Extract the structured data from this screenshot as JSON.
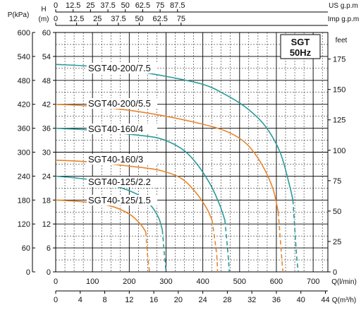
{
  "chart_data": {
    "type": "line",
    "title": "SGT",
    "subtitle": "50Hz",
    "axes": {
      "x_main": {
        "label": "Q(l/min)",
        "ticks": [
          "0",
          "100",
          "200",
          "300",
          "400",
          "500",
          "600",
          "700"
        ],
        "range": [
          0,
          740
        ]
      },
      "x_m3h": {
        "label": "Q(m³/h)",
        "ticks": [
          "0",
          "4",
          "8",
          "12",
          "16",
          "20",
          "24",
          "28",
          "32",
          "36",
          "40",
          "44"
        ],
        "range": [
          0,
          44.4
        ]
      },
      "x_us": {
        "label": "US g.p.m",
        "ticks": [
          "0",
          "12.5",
          "25",
          "37.5",
          "50",
          "62.5",
          "75",
          "87.5"
        ]
      },
      "x_imp": {
        "label": "Imp g.p.m",
        "ticks": [
          "0",
          "12.5",
          "25",
          "37.5",
          "50",
          "62.5",
          "75"
        ]
      },
      "y_head_m": {
        "label": "H",
        "unit": "(m)",
        "ticks": [
          "0",
          "6",
          "12",
          "18",
          "24",
          "30",
          "36",
          "42",
          "48",
          "54",
          "60"
        ],
        "range": [
          0,
          60
        ]
      },
      "y_kpa": {
        "label": "P(kPa)",
        "ticks": [
          "0",
          "60",
          "120",
          "180",
          "240",
          "300",
          "360",
          "420",
          "480",
          "540",
          "600"
        ]
      },
      "y_feet": {
        "label": "feet",
        "ticks": [
          "0",
          "25",
          "50",
          "75",
          "100",
          "125",
          "150",
          "175"
        ]
      }
    },
    "grid": true,
    "colors": {
      "teal": "#2b9a9a",
      "orange": "#e6862c",
      "grid": "#000000"
    },
    "series": [
      {
        "name": "SGT40-200/7.5",
        "color": "#2b9a9a",
        "points": [
          [
            0,
            52
          ],
          [
            100,
            51.5
          ],
          [
            200,
            50.5
          ],
          [
            300,
            49
          ],
          [
            400,
            47
          ],
          [
            460,
            44.5
          ],
          [
            520,
            41
          ],
          [
            570,
            36.5
          ],
          [
            610,
            30
          ],
          [
            635,
            22
          ],
          [
            645,
            18
          ]
        ],
        "tail": [
          [
            645,
            18
          ],
          [
            655,
            4
          ],
          [
            660,
            0
          ]
        ]
      },
      {
        "name": "SGT40-200/5.5",
        "color": "#e6862c",
        "points": [
          [
            0,
            42
          ],
          [
            100,
            41.5
          ],
          [
            200,
            40.5
          ],
          [
            300,
            39
          ],
          [
            400,
            37
          ],
          [
            470,
            35
          ],
          [
            520,
            32
          ],
          [
            560,
            27
          ],
          [
            590,
            21
          ],
          [
            605,
            15
          ]
        ],
        "tail": [
          [
            605,
            15
          ],
          [
            615,
            3
          ],
          [
            618,
            0
          ]
        ]
      },
      {
        "name": "SGT40-160/4",
        "color": "#2b9a9a",
        "points": [
          [
            0,
            36
          ],
          [
            100,
            35.5
          ],
          [
            200,
            34.5
          ],
          [
            280,
            33.5
          ],
          [
            340,
            31
          ],
          [
            380,
            27.5
          ],
          [
            420,
            22
          ],
          [
            445,
            17
          ],
          [
            460,
            13
          ]
        ],
        "tail": [
          [
            460,
            13
          ],
          [
            468,
            5
          ],
          [
            472,
            0
          ]
        ]
      },
      {
        "name": "SGT40-160/3",
        "color": "#e6862c",
        "points": [
          [
            0,
            28
          ],
          [
            100,
            27.5
          ],
          [
            200,
            26.5
          ],
          [
            280,
            25.5
          ],
          [
            340,
            23.5
          ],
          [
            380,
            20
          ],
          [
            410,
            16
          ],
          [
            425,
            13
          ]
        ],
        "tail": [
          [
            425,
            13
          ],
          [
            437,
            5
          ],
          [
            440,
            0
          ]
        ]
      },
      {
        "name": "SGT40-125/2.2",
        "color": "#2b9a9a",
        "points": [
          [
            0,
            24
          ],
          [
            100,
            23
          ],
          [
            180,
            21
          ],
          [
            230,
            19
          ],
          [
            260,
            16.5
          ],
          [
            280,
            13.5
          ],
          [
            290,
            10.5
          ]
        ],
        "tail": [
          [
            290,
            10.5
          ],
          [
            295,
            5
          ],
          [
            300,
            0
          ]
        ]
      },
      {
        "name": "SGT40-125/1.5",
        "color": "#e6862c",
        "points": [
          [
            0,
            18
          ],
          [
            80,
            17.5
          ],
          [
            150,
            16.5
          ],
          [
            200,
            14.5
          ],
          [
            230,
            12
          ],
          [
            245,
            10
          ]
        ],
        "tail": [
          [
            245,
            10
          ],
          [
            250,
            4
          ],
          [
            255,
            0
          ]
        ]
      }
    ],
    "label_positions_note": "labels placed near the left end of each curve"
  }
}
